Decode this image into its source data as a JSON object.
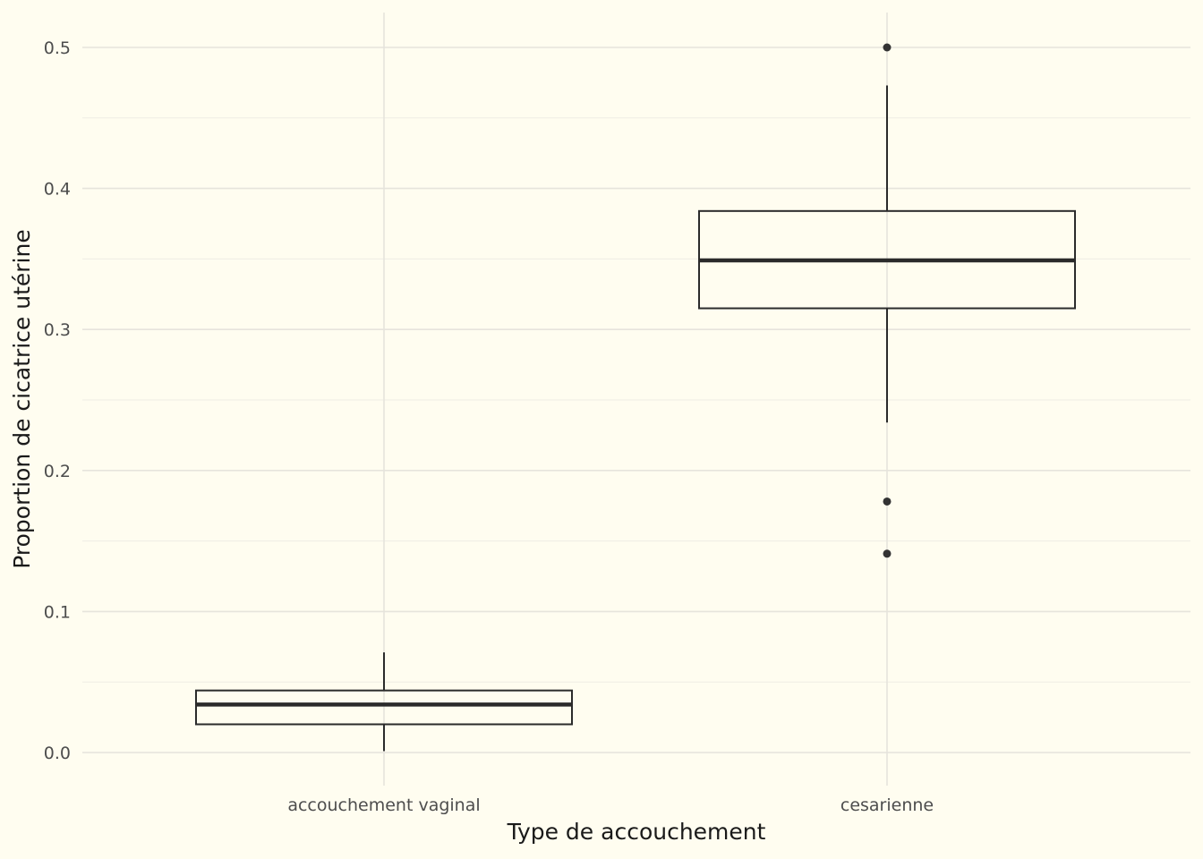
{
  "chart_data": {
    "type": "boxplot",
    "xlabel": "Type de accouchement",
    "ylabel": "Proportion de cicatrice utérine",
    "ylim": [
      -0.025,
      0.525
    ],
    "y_ticks": [
      "0.0",
      "0.1",
      "0.2",
      "0.3",
      "0.4",
      "0.5"
    ],
    "y_tick_values": [
      0.0,
      0.1,
      0.2,
      0.3,
      0.4,
      0.5
    ],
    "y_minor_values": [
      0.05,
      0.15,
      0.25,
      0.35,
      0.45
    ],
    "grid": true,
    "categories": [
      "accouchement vaginal",
      "cesarienne"
    ],
    "boxes": [
      {
        "category": "accouchement vaginal",
        "lower_whisker": 0.001,
        "q1": 0.02,
        "median": 0.034,
        "q3": 0.044,
        "upper_whisker": 0.071,
        "outliers": []
      },
      {
        "category": "cesarienne",
        "lower_whisker": 0.234,
        "q1": 0.315,
        "median": 0.349,
        "q3": 0.384,
        "upper_whisker": 0.473,
        "outliers": [
          0.5,
          0.178,
          0.141
        ]
      }
    ]
  }
}
